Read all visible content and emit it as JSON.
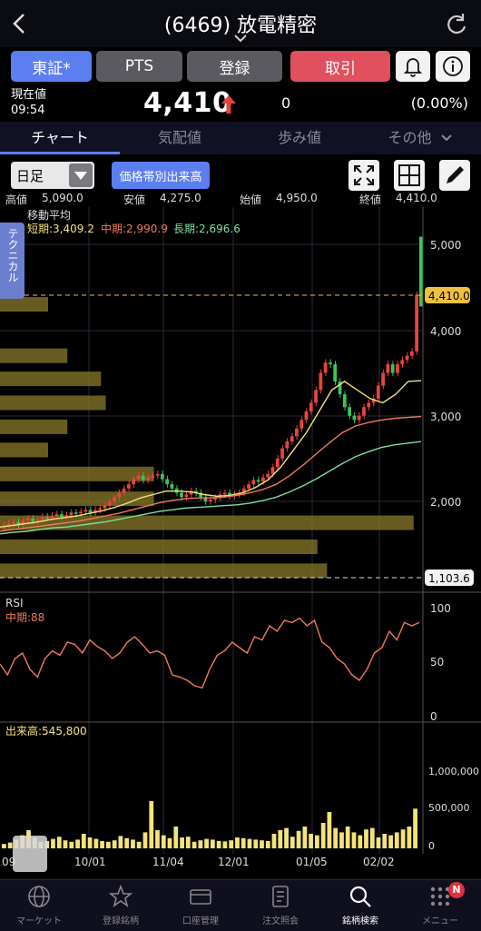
{
  "header": {
    "title": "(6469) 放電精密"
  },
  "buttons": {
    "tse": "東証*",
    "pts": "PTS",
    "register": "登録",
    "trade": "取引"
  },
  "price_row": {
    "label": "現在値",
    "time": "09:54",
    "price": "4,410",
    "change": "0",
    "percent": "(0.00%)"
  },
  "tabs": [
    "チャート",
    "気配値",
    "歩み値",
    "その他"
  ],
  "toolbar": {
    "period": "日足",
    "volume_profile": "価格帯別出来高"
  },
  "ohlc": {
    "high_label": "高値",
    "high": "5,090.0",
    "low_label": "安値",
    "low": "4,275.0",
    "open_label": "始値",
    "open": "4,950.0",
    "close_label": "終値",
    "close": "4,410.0"
  },
  "technical_tab": "テクニカル",
  "ma": {
    "title": "移動平均",
    "short": "短期:3,409.2",
    "mid": "中期:2,990.9",
    "long": "長期:2,696.6",
    "colors": {
      "short": "#f3e37a",
      "mid": "#f07a5a",
      "long": "#7be0a0"
    }
  },
  "price_axis": [
    "5,000",
    "4,000",
    "3,000",
    "2,000"
  ],
  "price_tags": {
    "current": "4,410.0",
    "low_line": "1,103.6"
  },
  "rsi": {
    "title": "RSI",
    "mid": "中期:88",
    "axis": [
      "100",
      "50",
      "0"
    ]
  },
  "volume": {
    "title": "出来高:545,800",
    "axis": [
      "1,000,000",
      "500,000",
      "0"
    ]
  },
  "x_labels": [
    "09",
    "10/01",
    "11/04",
    "12/01",
    "01/05",
    "02/02"
  ],
  "nav": [
    "マーケット",
    "登録銘柄",
    "口座管理",
    "注文照会",
    "銘柄検索",
    "メニュー"
  ],
  "nav_badge": "N",
  "colors": {
    "accent": "#5b7ef0",
    "trade": "#e0505e",
    "up": "#e8453c",
    "down": "#3cc45a",
    "vp": "#8a7a2a"
  },
  "chart_data": {
    "type": "candlestick",
    "candles_close": [
      1720,
      1740,
      1760,
      1730,
      1780,
      1800,
      1770,
      1790,
      1820,
      1810,
      1830,
      1850,
      1820,
      1840,
      1870,
      1860,
      1880,
      1900,
      1870,
      1900,
      1920,
      1950,
      2000,
      2050,
      2100,
      2150,
      2200,
      2260,
      2300,
      2250,
      2280,
      2300,
      2320,
      2260,
      2200,
      2150,
      2100,
      2050,
      2080,
      2120,
      2100,
      2050,
      2000,
      2020,
      2040,
      2080,
      2100,
      2060,
      2080,
      2100,
      2150,
      2200,
      2250,
      2230,
      2280,
      2320,
      2400,
      2500,
      2620,
      2700,
      2760,
      2850,
      2950,
      3050,
      3150,
      3300,
      3500,
      3620,
      3600,
      3400,
      3250,
      3100,
      3000,
      2950,
      3000,
      3100,
      3150,
      3200,
      3350,
      3500,
      3600,
      3500,
      3600,
      3650,
      3700,
      3750,
      4410
    ],
    "ma_short": [
      1700,
      1720,
      1740,
      1760,
      1790,
      1810,
      1830,
      1860,
      1890,
      1930,
      1980,
      2040,
      2080,
      2120,
      2120,
      2110,
      2080,
      2060,
      2070,
      2100,
      2160,
      2250,
      2400,
      2600,
      2800,
      3050,
      3300,
      3400,
      3300,
      3200,
      3150,
      3250,
      3400,
      3409
    ],
    "ma_mid": [
      1650,
      1670,
      1690,
      1710,
      1730,
      1750,
      1770,
      1800,
      1830,
      1860,
      1900,
      1940,
      1980,
      2010,
      2030,
      2040,
      2040,
      2050,
      2070,
      2100,
      2140,
      2200,
      2300,
      2420,
      2550,
      2680,
      2800,
      2880,
      2920,
      2950,
      2970,
      2980,
      2990
    ],
    "ma_long": [
      1620,
      1640,
      1650,
      1670,
      1690,
      1700,
      1720,
      1740,
      1760,
      1790,
      1820,
      1850,
      1880,
      1900,
      1920,
      1930,
      1940,
      1950,
      1960,
      1980,
      2010,
      2050,
      2110,
      2180,
      2260,
      2350,
      2440,
      2520,
      2580,
      2630,
      2660,
      2680,
      2697
    ],
    "volume_profile": [
      {
        "price": 4300,
        "strength": 0.1
      },
      {
        "price": 3700,
        "strength": 0.14
      },
      {
        "price": 3430,
        "strength": 0.21
      },
      {
        "price": 3150,
        "strength": 0.22
      },
      {
        "price": 2870,
        "strength": 0.14
      },
      {
        "price": 2600,
        "strength": 0.1
      },
      {
        "price": 2320,
        "strength": 0.32
      },
      {
        "price": 2030,
        "strength": 0.32
      },
      {
        "price": 1750,
        "strength": 0.86
      },
      {
        "price": 1470,
        "strength": 0.66
      },
      {
        "price": 1190,
        "strength": 0.68
      }
    ],
    "rsi": [
      50,
      40,
      55,
      60,
      45,
      38,
      55,
      62,
      58,
      70,
      68,
      60,
      72,
      66,
      62,
      55,
      60,
      70,
      75,
      68,
      60,
      62,
      58,
      40,
      38,
      35,
      30,
      28,
      45,
      58,
      62,
      70,
      65,
      60,
      75,
      72,
      85,
      80,
      90,
      88,
      92,
      85,
      90,
      70,
      65,
      55,
      50,
      40,
      35,
      45,
      60,
      65,
      80,
      72,
      88,
      85,
      88
    ],
    "volume": [
      60000,
      80000,
      120000,
      180000,
      250000,
      150000,
      90000,
      100000,
      130000,
      160000,
      110000,
      90000,
      120000,
      200000,
      150000,
      130000,
      100000,
      90000,
      110000,
      170000,
      140000,
      120000,
      90000,
      220000,
      650000,
      250000,
      180000,
      140000,
      300000,
      150000,
      160000,
      90000,
      110000,
      130000,
      120000,
      100000,
      95000,
      110000,
      150000,
      140000,
      130000,
      120000,
      110000,
      100000,
      200000,
      250000,
      280000,
      160000,
      240000,
      300000,
      200000,
      180000,
      350000,
      500000,
      280000,
      220000,
      300000,
      220000,
      180000,
      260000,
      280000,
      150000,
      200000,
      180000,
      220000,
      260000,
      300000,
      545800
    ]
  }
}
